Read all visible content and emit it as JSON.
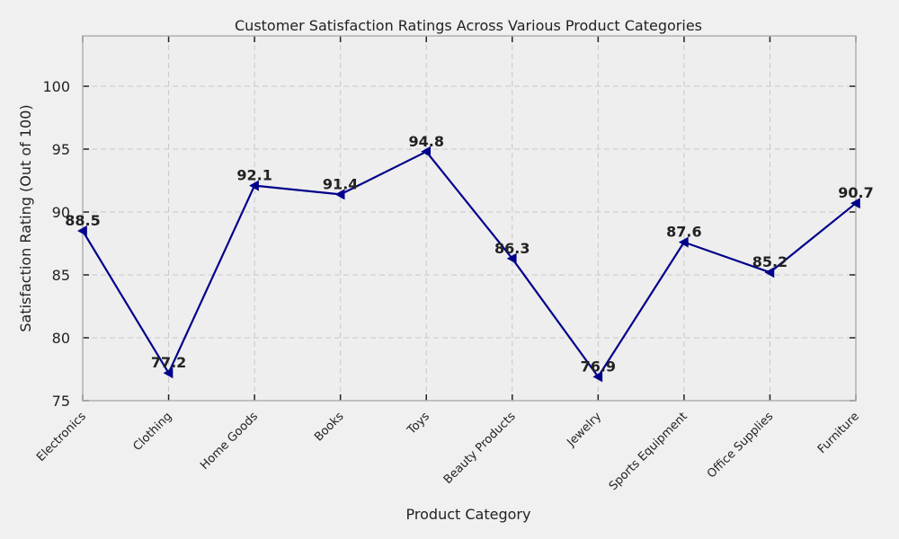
{
  "chart_data": {
    "type": "line",
    "title": "Customer Satisfaction Ratings Across Various Product Categories",
    "xlabel": "Product Category",
    "ylabel": "Satisfaction Rating (Out of 100)",
    "categories": [
      "Electronics",
      "Clothing",
      "Home Goods",
      "Books",
      "Toys",
      "Beauty Products",
      "Jewelry",
      "Sports Equipment",
      "Office Supplies",
      "Furniture"
    ],
    "values": [
      88.5,
      77.2,
      92.1,
      91.4,
      94.8,
      86.3,
      76.9,
      87.6,
      85.2,
      90.7
    ],
    "data_labels": [
      "88.5",
      "77.2",
      "92.1",
      "91.4",
      "94.8",
      "86.3",
      "76.9",
      "87.6",
      "85.2",
      "90.7"
    ],
    "ylim": [
      75,
      104
    ],
    "yticks": [
      "75",
      "80",
      "85",
      "90",
      "95",
      "100"
    ],
    "grid": true,
    "colors": {
      "line": "#00008b",
      "plot_bg": "#eeeeee",
      "page_bg": "#f0f0f0",
      "grid": "#c8c8c8",
      "frame": "#b0b0b0"
    }
  }
}
